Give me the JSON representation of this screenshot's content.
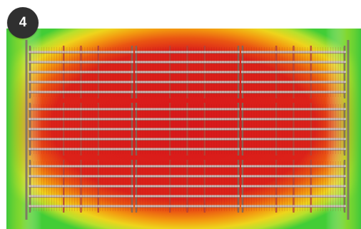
{
  "step_badge": {
    "number": "4"
  },
  "heatmap": {
    "grid_rows": 3,
    "grid_cols": 3,
    "bars_per_panel": 5,
    "colors": {
      "hot": "#e0201c",
      "warm": "#f07a10",
      "mid": "#f2d21a",
      "cool": "#b6e02a",
      "cold": "#3fcf35"
    }
  }
}
